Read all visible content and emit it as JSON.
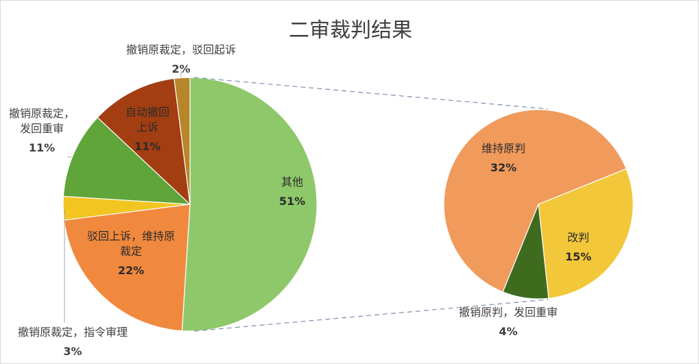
{
  "chart_data": {
    "type": "pie",
    "subtype": "pie-of-pie",
    "title": "二审裁判结果",
    "main_pie": {
      "slices": [
        {
          "label": "其他",
          "value": 51,
          "value_label": "51%",
          "color": "#8ec86a"
        },
        {
          "label": "驳回上诉，维持原裁定",
          "value": 22,
          "value_label": "22%",
          "color": "#f0893e"
        },
        {
          "label": "撤销原裁定，指令审理",
          "value": 3,
          "value_label": "3%",
          "color": "#f2c520"
        },
        {
          "label": "撤销原裁定，发回重审",
          "value": 11,
          "value_label": "11%",
          "color": "#5fa53a"
        },
        {
          "label": "自动撤回上诉",
          "value": 11,
          "value_label": "11%",
          "color": "#a23e12"
        },
        {
          "label": "撤销原裁定，驳回起诉",
          "value": 2,
          "value_label": "2%",
          "color": "#b8862a"
        }
      ]
    },
    "secondary_pie": {
      "parent_slice": "其他",
      "slices": [
        {
          "label": "维持原判",
          "value": 32,
          "value_label": "32%",
          "color": "#f09a5c"
        },
        {
          "label": "改判",
          "value": 15,
          "value_label": "15%",
          "color": "#f2c73a"
        },
        {
          "label": "撤销原判，发回重审",
          "value": 4,
          "value_label": "4%",
          "color": "#3f6b1e"
        }
      ]
    },
    "legend": "none",
    "data_labels": true
  }
}
